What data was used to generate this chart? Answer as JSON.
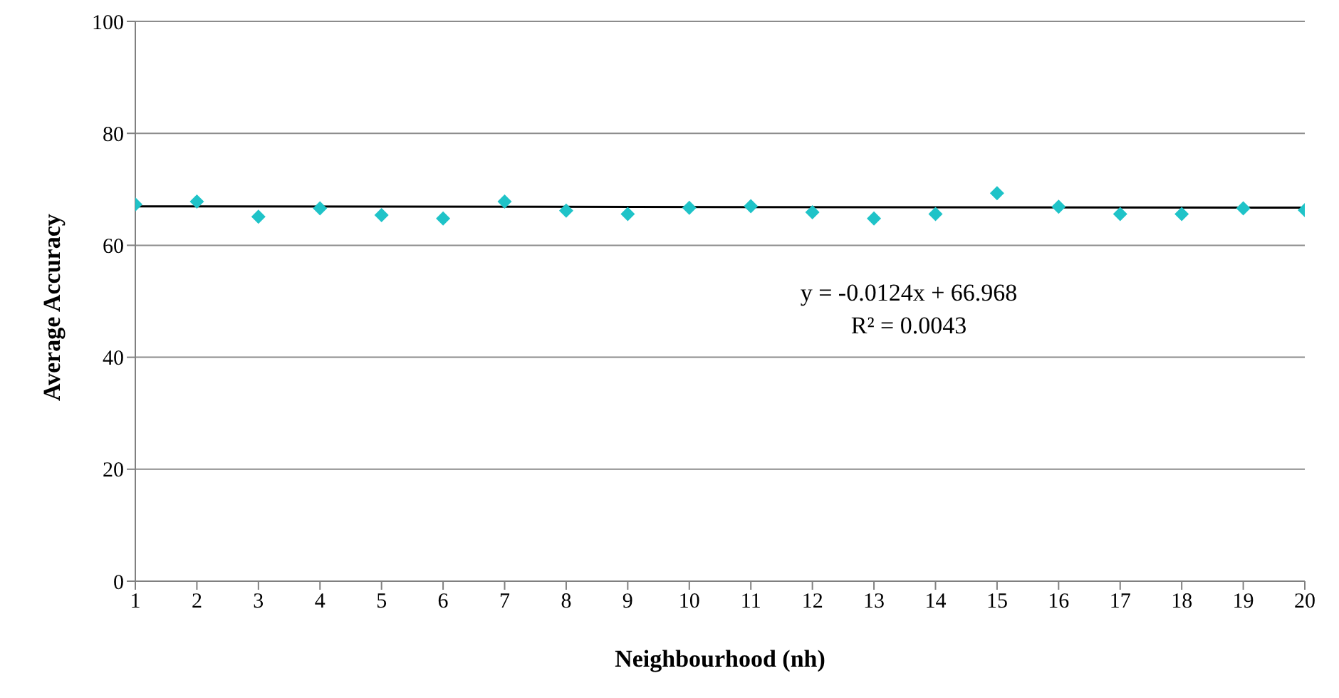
{
  "chart_data": {
    "type": "scatter",
    "xlabel": "Neighbourhood (nh)",
    "ylabel": "Average Accuracy",
    "xlim": [
      1,
      20
    ],
    "xticks": [
      1,
      2,
      3,
      4,
      5,
      6,
      7,
      8,
      9,
      10,
      11,
      12,
      13,
      14,
      15,
      16,
      17,
      18,
      19,
      20
    ],
    "ylim": [
      0,
      100
    ],
    "yticks": [
      0,
      20,
      40,
      60,
      80,
      100
    ],
    "grid": "y",
    "legend": false,
    "marker": "diamond",
    "series": [
      {
        "type": "scatter",
        "color": "#1fc3c8",
        "x": [
          1,
          2,
          3,
          4,
          5,
          6,
          7,
          8,
          9,
          10,
          11,
          12,
          13,
          14,
          15,
          16,
          17,
          18,
          19,
          20
        ],
        "values": [
          67.3,
          67.8,
          65.1,
          66.6,
          65.4,
          64.8,
          67.8,
          66.2,
          65.6,
          66.7,
          67.0,
          65.9,
          64.8,
          65.6,
          69.3,
          66.9,
          65.6,
          65.6,
          66.6,
          66.3
        ]
      },
      {
        "type": "line",
        "color": "#000000",
        "line_style": "solid",
        "marker": "none",
        "x": [
          1,
          20
        ],
        "values": [
          66.96,
          66.72
        ]
      }
    ],
    "annotations": [
      "y = -0.0124x + 66.968",
      "R² = 0.0043"
    ]
  }
}
